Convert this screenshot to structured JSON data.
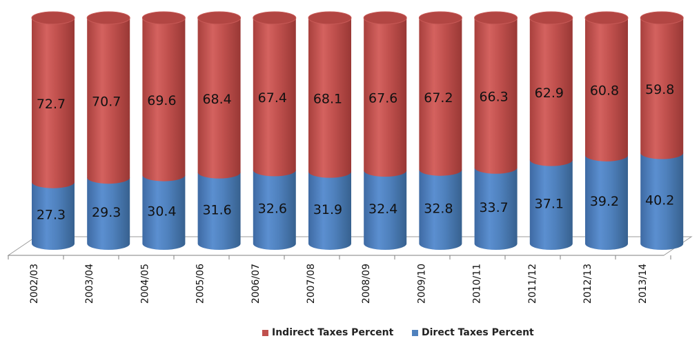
{
  "chart_data": {
    "type": "bar",
    "stacked": true,
    "style": "3d-cylinder",
    "categories": [
      "2002/03",
      "2003/04",
      "2004/05",
      "2005/06",
      "2006/07",
      "2007/08",
      "2008/09",
      "2009/10",
      "2010/11",
      "2011/12",
      "2012/13",
      "2013/14"
    ],
    "series": [
      {
        "name": "Direct Taxes Percent",
        "color": "#4f81bd",
        "values": [
          27.3,
          29.3,
          30.4,
          31.6,
          32.6,
          31.9,
          32.4,
          32.8,
          33.7,
          37.1,
          39.2,
          40.2
        ],
        "labels": [
          "27.3",
          "29.3",
          "30.4",
          "31.6",
          "32.6",
          "31.9",
          "32.4",
          "32.8",
          "33.7",
          "37.1",
          "39.2",
          "40.2"
        ]
      },
      {
        "name": "Indirect Taxes Percent",
        "color": "#c0504d",
        "values": [
          72.7,
          70.7,
          69.6,
          68.4,
          67.4,
          68.1,
          67.6,
          67.2,
          66.3,
          62.9,
          60.8,
          59.8
        ],
        "labels": [
          "72.7",
          "70.7",
          "69.6",
          "68.4",
          "67.4",
          "68.1",
          "67.6",
          "67.2",
          "66.3",
          "62.9",
          "60.8",
          "59.8"
        ]
      }
    ],
    "ylim": [
      0,
      100
    ],
    "title": "",
    "xlabel": "",
    "ylabel": "",
    "grid": false,
    "legend_position": "bottom"
  },
  "legend": {
    "items": [
      {
        "label": "Indirect Taxes Percent",
        "color": "#c0504d"
      },
      {
        "label": "Direct Taxes Percent",
        "color": "#4f81bd"
      }
    ]
  }
}
